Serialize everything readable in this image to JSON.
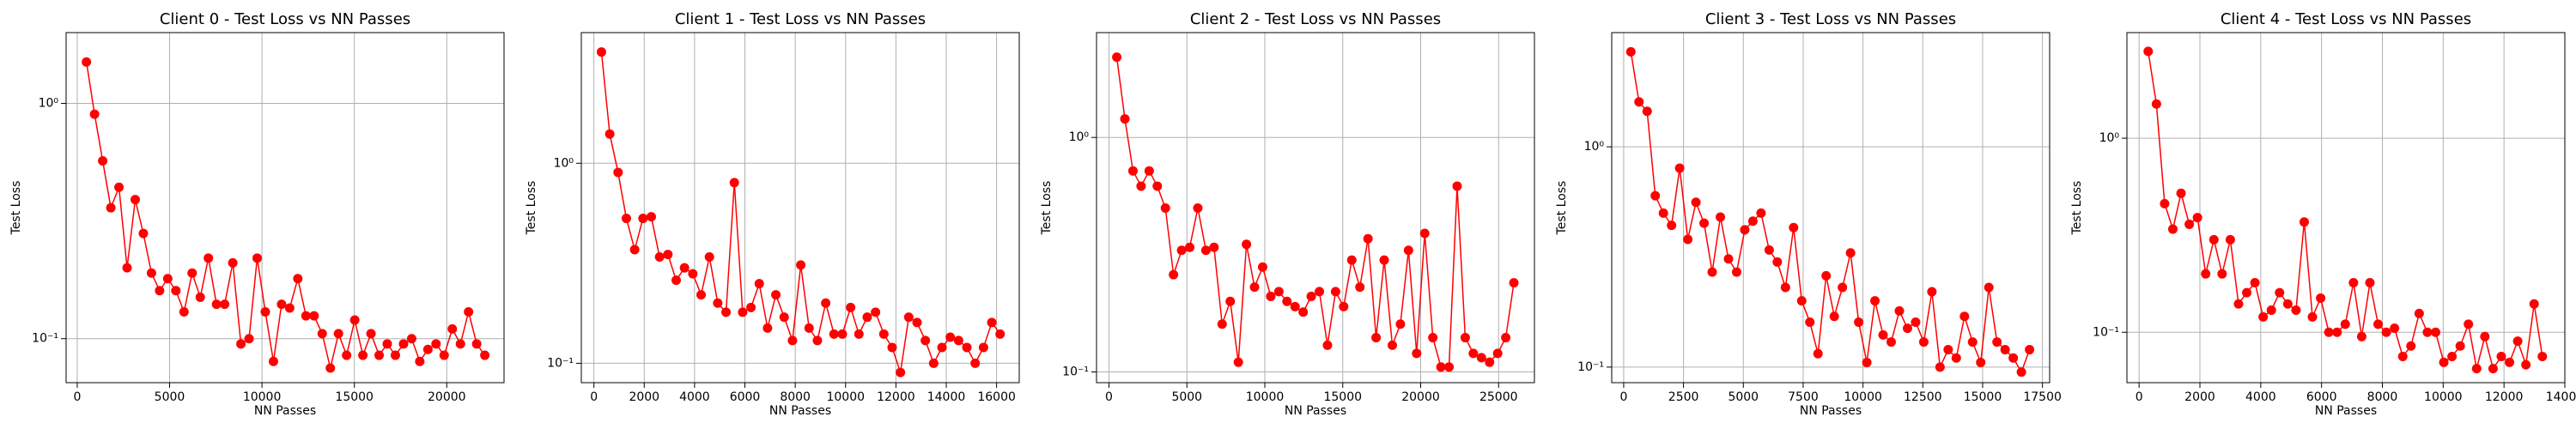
{
  "chart_data": [
    {
      "type": "line",
      "title": "Client 0 - Test Loss vs NN Passes",
      "xlabel": "NN Passes",
      "ylabel": "Test Loss",
      "color": "#ff0000",
      "grid": true,
      "log_y": true,
      "x": [
        500,
        940,
        1380,
        1820,
        2260,
        2700,
        3140,
        3580,
        4020,
        4460,
        4900,
        5340,
        5780,
        6220,
        6660,
        7100,
        7540,
        7980,
        8420,
        8860,
        9300,
        9740,
        10180,
        10620,
        11060,
        11500,
        11940,
        12380,
        12820,
        13260,
        13700,
        14140,
        14580,
        15020,
        15460,
        15900,
        16340,
        16780,
        17220,
        17660,
        18100,
        18540,
        18980,
        19420,
        19860,
        20300,
        20740,
        21180,
        21620,
        22060
      ],
      "values": [
        1.5,
        0.9,
        0.57,
        0.36,
        0.44,
        0.2,
        0.39,
        0.28,
        0.19,
        0.16,
        0.18,
        0.16,
        0.13,
        0.19,
        0.15,
        0.22,
        0.14,
        0.14,
        0.21,
        0.095,
        0.1,
        0.22,
        0.13,
        0.08,
        0.14,
        0.135,
        0.18,
        0.125,
        0.125,
        0.105,
        0.075,
        0.105,
        0.085,
        0.12,
        0.085,
        0.105,
        0.085,
        0.095,
        0.085,
        0.095,
        0.1,
        0.08,
        0.09,
        0.095,
        0.085,
        0.11,
        0.095,
        0.13,
        0.095,
        0.085
      ],
      "xlim": [
        -600,
        23100
      ],
      "xticks": [
        0,
        5000,
        10000,
        15000,
        20000
      ],
      "ylim": [
        0.065,
        2.0
      ],
      "yticks": [
        {
          "value": 0.1,
          "label": "10⁻¹"
        },
        {
          "value": 1,
          "label": "10⁰"
        }
      ]
    },
    {
      "type": "line",
      "title": "Client 1 - Test Loss vs NN Passes",
      "xlabel": "NN Passes",
      "ylabel": "Test Loss",
      "color": "#ff0000",
      "grid": true,
      "log_y": true,
      "x": [
        300,
        630,
        960,
        1290,
        1620,
        1950,
        2280,
        2610,
        2940,
        3270,
        3600,
        3930,
        4260,
        4590,
        4920,
        5250,
        5580,
        5910,
        6240,
        6570,
        6900,
        7230,
        7560,
        7890,
        8220,
        8550,
        8880,
        9210,
        9540,
        9870,
        10200,
        10530,
        10860,
        11190,
        11520,
        11850,
        12180,
        12510,
        12840,
        13170,
        13500,
        13830,
        14160,
        14490,
        14820,
        15150,
        15480,
        15810,
        16140
      ],
      "values": [
        3.6,
        1.4,
        0.9,
        0.53,
        0.37,
        0.53,
        0.54,
        0.34,
        0.35,
        0.26,
        0.3,
        0.28,
        0.22,
        0.34,
        0.2,
        0.18,
        0.8,
        0.18,
        0.19,
        0.25,
        0.15,
        0.22,
        0.17,
        0.13,
        0.31,
        0.15,
        0.13,
        0.2,
        0.14,
        0.14,
        0.19,
        0.14,
        0.17,
        0.18,
        0.14,
        0.12,
        0.09,
        0.17,
        0.16,
        0.13,
        0.1,
        0.12,
        0.135,
        0.13,
        0.12,
        0.1,
        0.12,
        0.16,
        0.14
      ],
      "xlim": [
        -500,
        16900
      ],
      "xticks": [
        0,
        2000,
        4000,
        6000,
        8000,
        10000,
        12000,
        14000,
        16000
      ],
      "ylim": [
        0.08,
        4.5
      ],
      "yticks": [
        {
          "value": 0.1,
          "label": "10⁻¹"
        },
        {
          "value": 1,
          "label": "10⁰"
        }
      ]
    },
    {
      "type": "line",
      "title": "Client 2 - Test Loss vs NN Passes",
      "xlabel": "NN Passes",
      "ylabel": "Test Loss",
      "color": "#ff0000",
      "grid": true,
      "log_y": true,
      "x": [
        500,
        1020,
        1540,
        2060,
        2580,
        3100,
        3620,
        4140,
        4660,
        5180,
        5700,
        6220,
        6740,
        7260,
        7780,
        8300,
        8820,
        9340,
        9860,
        10380,
        10900,
        11420,
        11940,
        12460,
        12980,
        13500,
        14020,
        14540,
        15060,
        15580,
        16100,
        16620,
        17140,
        17660,
        18180,
        18700,
        19220,
        19740,
        20260,
        20780,
        21300,
        21820,
        22340,
        22860,
        23380,
        23900,
        24420,
        24940,
        25460,
        25980
      ],
      "values": [
        2.2,
        1.2,
        0.72,
        0.62,
        0.72,
        0.62,
        0.5,
        0.26,
        0.33,
        0.34,
        0.5,
        0.33,
        0.34,
        0.16,
        0.2,
        0.11,
        0.35,
        0.23,
        0.28,
        0.21,
        0.22,
        0.2,
        0.19,
        0.18,
        0.21,
        0.22,
        0.13,
        0.22,
        0.19,
        0.3,
        0.23,
        0.37,
        0.14,
        0.3,
        0.13,
        0.16,
        0.33,
        0.12,
        0.39,
        0.14,
        0.105,
        0.105,
        0.62,
        0.14,
        0.12,
        0.115,
        0.11,
        0.12,
        0.14,
        0.24
      ],
      "xlim": [
        -800,
        27300
      ],
      "xticks": [
        0,
        5000,
        10000,
        15000,
        20000,
        25000
      ],
      "ylim": [
        0.09,
        2.8
      ],
      "yticks": [
        {
          "value": 0.1,
          "label": "10⁻¹"
        },
        {
          "value": 1,
          "label": "10⁰"
        }
      ]
    },
    {
      "type": "line",
      "title": "Client 3 - Test Loss vs NN Passes",
      "xlabel": "NN Passes",
      "ylabel": "Test Loss",
      "color": "#ff0000",
      "grid": true,
      "log_y": true,
      "x": [
        300,
        640,
        980,
        1320,
        1660,
        2000,
        2340,
        2680,
        3020,
        3360,
        3700,
        4040,
        4380,
        4720,
        5060,
        5400,
        5740,
        6080,
        6420,
        6760,
        7100,
        7440,
        7780,
        8120,
        8460,
        8800,
        9140,
        9480,
        9820,
        10160,
        10500,
        10840,
        11180,
        11520,
        11860,
        12200,
        12540,
        12880,
        13220,
        13560,
        13900,
        14240,
        14580,
        14920,
        15260,
        15600,
        15940,
        16280,
        16620,
        16960
      ],
      "values": [
        2.7,
        1.6,
        1.45,
        0.6,
        0.5,
        0.44,
        0.8,
        0.38,
        0.56,
        0.45,
        0.27,
        0.48,
        0.31,
        0.27,
        0.42,
        0.46,
        0.5,
        0.34,
        0.3,
        0.23,
        0.43,
        0.2,
        0.16,
        0.115,
        0.26,
        0.17,
        0.23,
        0.33,
        0.16,
        0.105,
        0.2,
        0.14,
        0.13,
        0.18,
        0.15,
        0.16,
        0.13,
        0.22,
        0.1,
        0.12,
        0.11,
        0.17,
        0.13,
        0.105,
        0.23,
        0.13,
        0.12,
        0.11,
        0.095,
        0.12
      ],
      "xlim": [
        -500,
        17800
      ],
      "xticks": [
        0,
        2500,
        5000,
        7500,
        10000,
        12500,
        15000,
        17500
      ],
      "ylim": [
        0.085,
        3.3
      ],
      "yticks": [
        {
          "value": 0.1,
          "label": "10⁻¹"
        },
        {
          "value": 1,
          "label": "10⁰"
        }
      ]
    },
    {
      "type": "line",
      "title": "Client 4 - Test Loss vs NN Passes",
      "xlabel": "NN Passes",
      "ylabel": "Test Loss",
      "color": "#ff0000",
      "grid": true,
      "log_y": true,
      "x": [
        300,
        570,
        840,
        1110,
        1380,
        1650,
        1920,
        2190,
        2460,
        2730,
        3000,
        3270,
        3540,
        3810,
        4080,
        4350,
        4620,
        4890,
        5160,
        5430,
        5700,
        5970,
        6240,
        6510,
        6780,
        7050,
        7320,
        7590,
        7860,
        8130,
        8400,
        8670,
        8940,
        9210,
        9480,
        9750,
        10020,
        10290,
        10560,
        10830,
        11100,
        11370,
        11640,
        11910,
        12180,
        12450,
        12720,
        12990,
        13260
      ],
      "values": [
        2.8,
        1.5,
        0.46,
        0.34,
        0.52,
        0.36,
        0.39,
        0.2,
        0.3,
        0.2,
        0.3,
        0.14,
        0.16,
        0.18,
        0.12,
        0.13,
        0.16,
        0.14,
        0.13,
        0.37,
        0.12,
        0.15,
        0.1,
        0.1,
        0.11,
        0.18,
        0.095,
        0.18,
        0.11,
        0.1,
        0.105,
        0.075,
        0.085,
        0.125,
        0.1,
        0.1,
        0.07,
        0.075,
        0.085,
        0.11,
        0.065,
        0.095,
        0.065,
        0.075,
        0.07,
        0.09,
        0.068,
        0.14,
        0.075
      ],
      "xlim": [
        -400,
        14000
      ],
      "xticks": [
        0,
        2000,
        4000,
        6000,
        8000,
        10000,
        12000,
        14000
      ],
      "ylim": [
        0.055,
        3.5
      ],
      "yticks": [
        {
          "value": 0.1,
          "label": "10⁻¹"
        },
        {
          "value": 1,
          "label": "10⁰"
        }
      ]
    }
  ]
}
